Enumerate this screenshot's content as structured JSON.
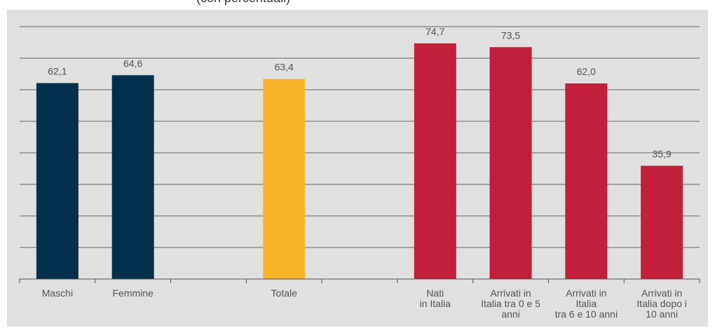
{
  "top_fragment": "(con percentuali)",
  "chart_data": {
    "type": "bar",
    "title": "",
    "xlabel": "",
    "ylabel": "",
    "ylim": [
      0,
      80
    ],
    "grid": true,
    "legend": "none",
    "colors": {
      "sex": "#03304c",
      "total": "#fbb52a",
      "migration": "#c11f3a",
      "grid": "#666666",
      "axis": "#555555",
      "label": "#555555"
    },
    "categories": [
      "Maschi",
      "Femmine",
      "",
      "Totale",
      "",
      "Nati\nin Italia",
      "Arrivati in\nItalia tra 0 e 5\nanni",
      "Arrivati in\nItalia\ntra 6 e 10 anni",
      "Arrivati in\nItalia dopo i\n10 anni"
    ],
    "values": [
      62.1,
      64.6,
      null,
      63.4,
      null,
      74.7,
      73.5,
      62.0,
      35.9
    ],
    "value_labels": [
      "62,1",
      "64,6",
      "",
      "63,4",
      "",
      "74,7",
      "73,5",
      "62,0",
      "35,9"
    ],
    "bar_groups": [
      "sex",
      "sex",
      "gap",
      "total",
      "gap",
      "migration",
      "migration",
      "migration",
      "migration"
    ]
  }
}
